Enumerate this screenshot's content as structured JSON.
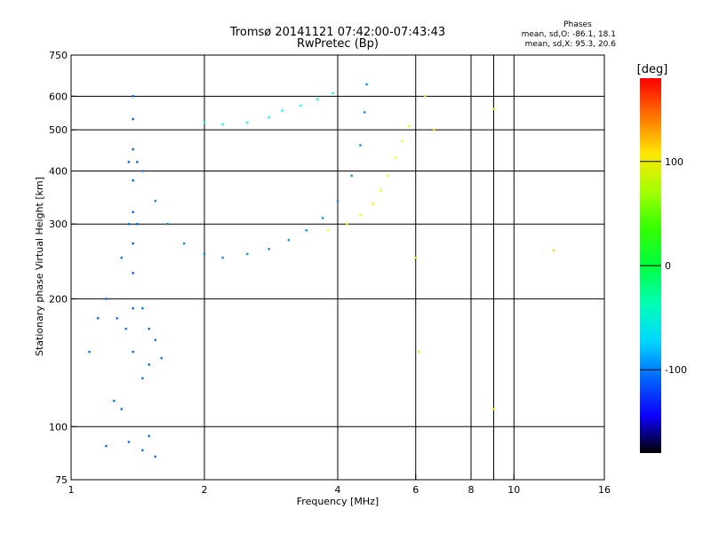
{
  "chart_data": {
    "type": "scatter",
    "title": "Tromsø 20141121 07:42:00-07:43:43",
    "subtitle": "RwPretec (Bp)",
    "xlabel": "Frequency [MHz]",
    "ylabel": "Stationary phase Virtual Height [km]",
    "x_scale": "log",
    "y_scale": "log",
    "xlim": [
      1,
      16
    ],
    "ylim": [
      75,
      750
    ],
    "x_ticks": [
      {
        "v": 1,
        "label": "1"
      },
      {
        "v": 2,
        "label": "2"
      },
      {
        "v": 4,
        "label": "4"
      },
      {
        "v": 6,
        "label": "6"
      },
      {
        "v": 8,
        "label": "8"
      },
      {
        "v": 10,
        "label": "10"
      },
      {
        "v": 16,
        "label": "16"
      }
    ],
    "x_grid": [
      2,
      4,
      6,
      8,
      9,
      10
    ],
    "y_ticks": [
      {
        "v": 75,
        "label": "75"
      },
      {
        "v": 100,
        "label": "100"
      },
      {
        "v": 200,
        "label": "200"
      },
      {
        "v": 300,
        "label": "300"
      },
      {
        "v": 400,
        "label": "400"
      },
      {
        "v": 500,
        "label": "500"
      },
      {
        "v": 600,
        "label": "600"
      },
      {
        "v": 750,
        "label": "750"
      }
    ],
    "y_grid": [
      100,
      200,
      300,
      400,
      500,
      600
    ],
    "grid": true,
    "colorbar": {
      "label": "[deg]",
      "range": [
        -180,
        180
      ],
      "ticks": [
        {
          "v": 100,
          "label": "100"
        },
        {
          "v": 0,
          "label": "0"
        },
        {
          "v": -100,
          "label": "-100"
        }
      ]
    },
    "legend": {
      "title": "Phases",
      "lines": [
        "mean, sd,O: -86.1, 18.1",
        "mean, sd,X:  95.3, 20.6"
      ]
    },
    "groups": [
      {
        "name": "O-low-spike",
        "color": -110,
        "points": [
          [
            1.38,
            150
          ],
          [
            1.38,
            190
          ],
          [
            1.38,
            230
          ],
          [
            1.38,
            270
          ],
          [
            1.38,
            320
          ],
          [
            1.38,
            380
          ],
          [
            1.38,
            450
          ],
          [
            1.38,
            530
          ],
          [
            1.38,
            600
          ],
          [
            1.35,
            300
          ],
          [
            1.41,
            300
          ],
          [
            1.35,
            420
          ],
          [
            1.41,
            420
          ]
        ]
      },
      {
        "name": "O-low-scatter",
        "color": -105,
        "points": [
          [
            1.2,
            200
          ],
          [
            1.3,
            250
          ],
          [
            1.27,
            180
          ],
          [
            1.33,
            170
          ],
          [
            1.45,
            190
          ],
          [
            1.5,
            170
          ],
          [
            1.55,
            160
          ],
          [
            1.6,
            145
          ],
          [
            1.45,
            130
          ],
          [
            1.5,
            140
          ],
          [
            1.25,
            115
          ],
          [
            1.3,
            110
          ],
          [
            1.2,
            90
          ],
          [
            1.35,
            92
          ],
          [
            1.5,
            95
          ],
          [
            1.55,
            85
          ],
          [
            1.45,
            88
          ],
          [
            1.1,
            150
          ],
          [
            1.15,
            180
          ]
        ]
      },
      {
        "name": "O-trace-lower",
        "color": -95,
        "points": [
          [
            1.45,
            400
          ],
          [
            1.55,
            340
          ],
          [
            1.65,
            300
          ],
          [
            1.8,
            270
          ],
          [
            2.0,
            255
          ],
          [
            2.2,
            250
          ],
          [
            2.5,
            255
          ],
          [
            2.8,
            262
          ],
          [
            3.1,
            275
          ],
          [
            3.4,
            290
          ],
          [
            3.7,
            310
          ],
          [
            4.0,
            340
          ],
          [
            4.3,
            390
          ],
          [
            4.5,
            460
          ],
          [
            4.6,
            550
          ],
          [
            4.65,
            640
          ]
        ]
      },
      {
        "name": "O-trace-upper",
        "color": -60,
        "points": [
          [
            2.5,
            520
          ],
          [
            2.8,
            535
          ],
          [
            3.0,
            555
          ],
          [
            3.3,
            570
          ],
          [
            3.6,
            590
          ],
          [
            3.9,
            610
          ],
          [
            2.0,
            520
          ],
          [
            2.2,
            515
          ]
        ]
      },
      {
        "name": "X-trace",
        "color": 95,
        "points": [
          [
            3.8,
            290
          ],
          [
            4.2,
            300
          ],
          [
            4.5,
            315
          ],
          [
            4.8,
            335
          ],
          [
            5.0,
            360
          ],
          [
            5.2,
            390
          ],
          [
            5.4,
            430
          ],
          [
            5.6,
            470
          ],
          [
            5.8,
            510
          ]
        ]
      },
      {
        "name": "X-scatter",
        "color": 110,
        "points": [
          [
            6.3,
            600
          ],
          [
            6.6,
            500
          ],
          [
            9.0,
            560
          ],
          [
            9.0,
            110
          ],
          [
            12.3,
            260
          ],
          [
            6.0,
            250
          ],
          [
            6.1,
            150
          ]
        ]
      }
    ]
  }
}
